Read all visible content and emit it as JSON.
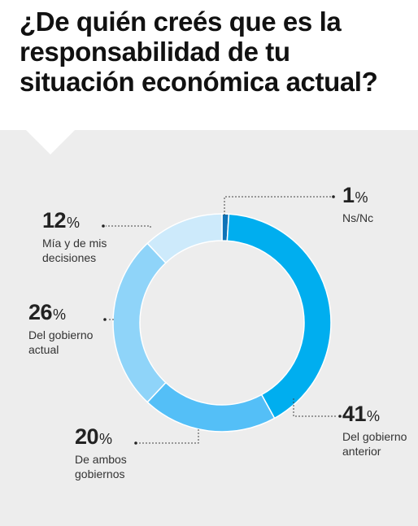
{
  "title": "¿De quién creés que es la responsabilidad de tu situación económica actual?",
  "unit": "%",
  "colors": {
    "background_panel": "#ededed"
  },
  "chart_data": {
    "type": "donut",
    "title": "¿De quién creés que es la responsabilidad de tu situación económica actual?",
    "slices": [
      {
        "label": "Ns/Nc",
        "value": 1,
        "color": "#0d73b8"
      },
      {
        "label": "Del gobierno anterior",
        "value": 41,
        "color": "#00aeef"
      },
      {
        "label": "De ambos gobiernos",
        "value": 20,
        "color": "#54bff7"
      },
      {
        "label": "Del gobierno actual",
        "value": 26,
        "color": "#8fd4f9"
      },
      {
        "label": "Mía y de mis decisiones",
        "value": 12,
        "color": "#cdeafb"
      }
    ]
  }
}
